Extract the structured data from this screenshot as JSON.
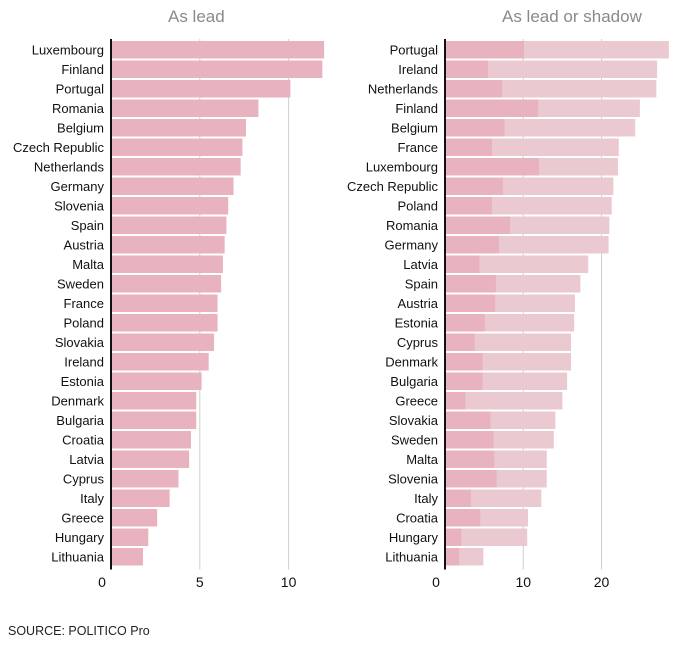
{
  "source": "SOURCE: POLITICO Pro",
  "colors": {
    "lead": "#e8b2bf",
    "shadow": "#ebc9d0",
    "title": "#8a8a8a",
    "grid": "#cfcfcf",
    "axis": "#111111"
  },
  "chart_data": [
    {
      "type": "bar",
      "orientation": "horizontal",
      "title": "As lead",
      "xlabel": "",
      "ylabel": "",
      "xlim": [
        0,
        12.5
      ],
      "xticks": [
        0,
        5,
        10
      ],
      "grid": true,
      "categories": [
        "Luxembourg",
        "Finland",
        "Portugal",
        "Romania",
        "Belgium",
        "Czech Republic",
        "Netherlands",
        "Germany",
        "Slovenia",
        "Spain",
        "Austria",
        "Malta",
        "Sweden",
        "France",
        "Poland",
        "Slovakia",
        "Ireland",
        "Estonia",
        "Denmark",
        "Bulgaria",
        "Croatia",
        "Latvia",
        "Cyprus",
        "Italy",
        "Greece",
        "Hungary",
        "Lithuania"
      ],
      "series": [
        {
          "values": [
            12.0,
            11.9,
            10.1,
            8.3,
            7.6,
            7.4,
            7.3,
            6.9,
            6.6,
            6.5,
            6.4,
            6.3,
            6.2,
            6.0,
            6.0,
            5.8,
            5.5,
            5.1,
            4.8,
            4.8,
            4.5,
            4.4,
            3.8,
            3.3,
            2.6,
            2.1,
            1.8
          ]
        }
      ]
    },
    {
      "type": "bar",
      "orientation": "horizontal",
      "stacked": false,
      "title": "As lead or shadow",
      "xlabel": "",
      "ylabel": "",
      "xlim": [
        0,
        29
      ],
      "xticks": [
        0,
        10,
        20
      ],
      "grid": true,
      "categories": [
        "Portugal",
        "Ireland",
        "Netherlands",
        "Finland",
        "Belgium",
        "France",
        "Luxembourg",
        "Czech Republic",
        "Poland",
        "Romania",
        "Germany",
        "Latvia",
        "Spain",
        "Austria",
        "Estonia",
        "Cyprus",
        "Denmark",
        "Bulgaria",
        "Greece",
        "Slovakia",
        "Sweden",
        "Malta",
        "Slovenia",
        "Italy",
        "Croatia",
        "Hungary",
        "Lithuania"
      ],
      "series": [
        {
          "role": "total",
          "values": [
            28.6,
            27.1,
            27.0,
            24.9,
            24.3,
            22.2,
            22.1,
            21.5,
            21.3,
            21.0,
            20.9,
            18.3,
            17.3,
            16.6,
            16.5,
            16.1,
            16.1,
            15.6,
            15.0,
            14.1,
            13.9,
            13.0,
            13.0,
            12.3,
            10.6,
            10.5,
            4.9
          ]
        },
        {
          "role": "lead",
          "values": [
            10.1,
            5.5,
            7.3,
            11.9,
            7.6,
            6.0,
            12.0,
            7.4,
            6.0,
            8.3,
            6.9,
            4.4,
            6.5,
            6.4,
            5.1,
            3.8,
            4.8,
            4.8,
            2.6,
            5.8,
            6.2,
            6.3,
            6.6,
            3.3,
            4.5,
            2.1,
            1.8
          ]
        }
      ]
    }
  ]
}
